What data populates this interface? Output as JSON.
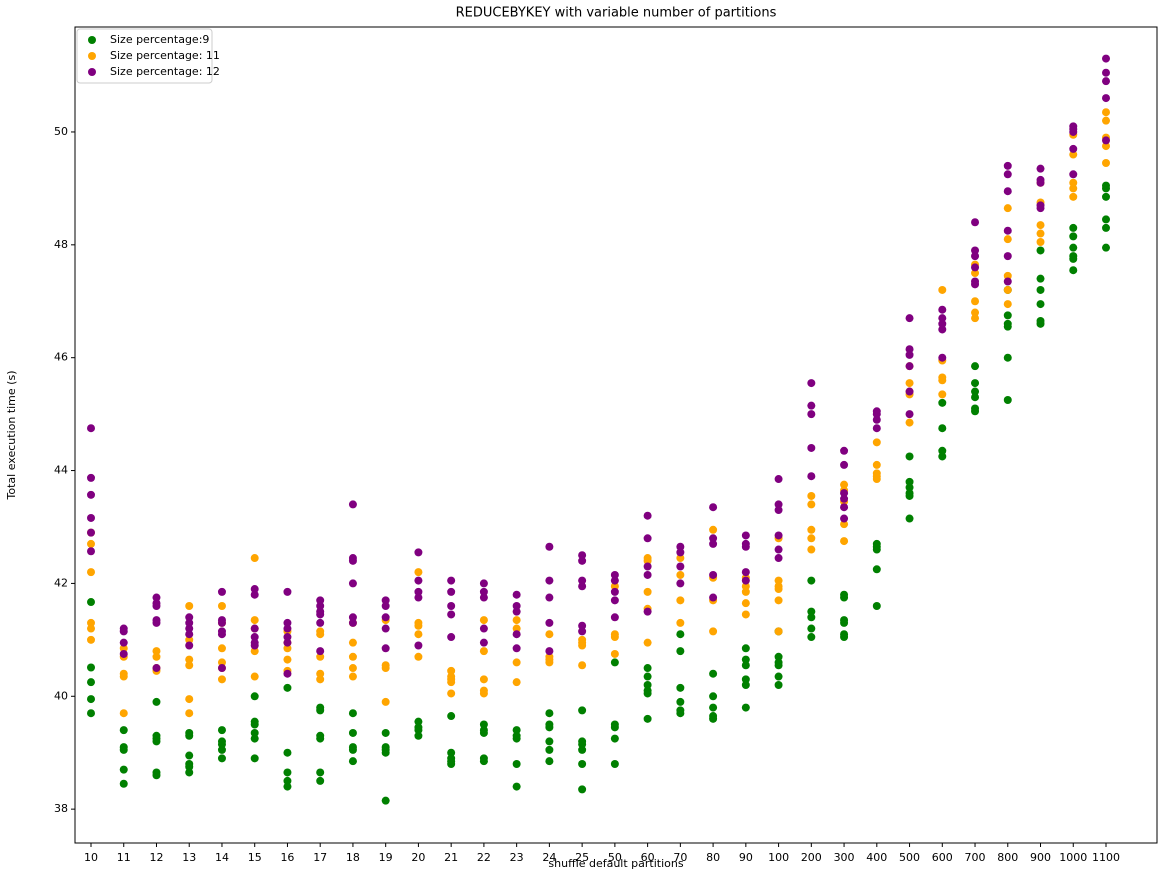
{
  "chart_data": {
    "type": "scatter",
    "title": "REDUCEBYKEY with variable number of partitions",
    "x_label": "shuffle default partitions",
    "y_label": "Total execution time (s)",
    "categories": [
      "10",
      "11",
      "12",
      "13",
      "14",
      "15",
      "16",
      "17",
      "18",
      "19",
      "20",
      "21",
      "22",
      "23",
      "24",
      "25",
      "50",
      "60",
      "70",
      "80",
      "90",
      "100",
      "200",
      "300",
      "400",
      "500",
      "600",
      "700",
      "800",
      "900",
      "1000",
      "1100"
    ],
    "ylim": [
      37.4,
      51.86
    ],
    "yticks": [
      38,
      40,
      42,
      44,
      46,
      48,
      50
    ],
    "legend": "upper left",
    "series": [
      {
        "name": "Size percentage:9",
        "color": "#008000",
        "values": [
          [
            41.67,
            40.51,
            40.25,
            39.95,
            39.7
          ],
          [
            39.4,
            39.1,
            39.05,
            38.7,
            38.45
          ],
          [
            39.9,
            39.3,
            39.25,
            39.2,
            38.65,
            38.6
          ],
          [
            39.35,
            39.3,
            38.95,
            38.8,
            38.75,
            38.65
          ],
          [
            39.4,
            39.2,
            39.15,
            39.05,
            38.9
          ],
          [
            40.0,
            39.55,
            39.5,
            39.35,
            39.25,
            38.9
          ],
          [
            40.15,
            39.0,
            38.65,
            38.5,
            38.4
          ],
          [
            39.8,
            39.75,
            39.3,
            39.25,
            38.65,
            38.5
          ],
          [
            39.7,
            39.35,
            39.1,
            39.05,
            38.85
          ],
          [
            39.35,
            39.1,
            39.05,
            39.0,
            38.15
          ],
          [
            39.55,
            39.45,
            39.4,
            39.3
          ],
          [
            39.65,
            39.0,
            38.9,
            38.85,
            38.8
          ],
          [
            39.5,
            39.4,
            39.35,
            38.9,
            38.85
          ],
          [
            39.4,
            39.3,
            39.25,
            38.8,
            38.4
          ],
          [
            39.7,
            39.5,
            39.45,
            39.2,
            39.05,
            38.85
          ],
          [
            39.75,
            39.2,
            39.15,
            39.05,
            38.8,
            38.35
          ],
          [
            40.6,
            39.5,
            39.45,
            39.25,
            38.8
          ],
          [
            40.5,
            40.35,
            40.2,
            40.1,
            40.05,
            39.6
          ],
          [
            41.1,
            40.8,
            40.15,
            39.9,
            39.75,
            39.7
          ],
          [
            40.4,
            40.0,
            39.8,
            39.65,
            39.6
          ],
          [
            40.85,
            40.65,
            40.55,
            40.3,
            40.2,
            39.8
          ],
          [
            41.15,
            40.7,
            40.6,
            40.55,
            40.35,
            40.2
          ],
          [
            42.05,
            41.5,
            41.4,
            41.2,
            41.05
          ],
          [
            41.8,
            41.75,
            41.35,
            41.3,
            41.1,
            41.05
          ],
          [
            42.7,
            42.65,
            42.6,
            42.25,
            41.6
          ],
          [
            44.25,
            43.8,
            43.7,
            43.6,
            43.55,
            43.15
          ],
          [
            45.2,
            44.75,
            44.35,
            44.25
          ],
          [
            45.85,
            45.55,
            45.4,
            45.3,
            45.1,
            45.05
          ],
          [
            47.2,
            46.75,
            46.6,
            46.55,
            46.0,
            45.25
          ],
          [
            47.9,
            47.4,
            47.2,
            46.95,
            46.65,
            46.6
          ],
          [
            48.3,
            48.15,
            47.95,
            47.8,
            47.75,
            47.55
          ],
          [
            49.05,
            49.0,
            48.85,
            48.45,
            48.3,
            47.95
          ]
        ]
      },
      {
        "name": "Size percentage: 11",
        "color": "#ffa500",
        "values": [
          [
            42.9,
            42.7,
            42.2,
            41.3,
            41.2,
            41.0
          ],
          [
            40.85,
            40.7,
            40.4,
            40.35,
            39.7
          ],
          [
            40.8,
            40.7,
            40.5,
            40.45
          ],
          [
            41.6,
            41.0,
            40.65,
            40.55,
            39.95,
            39.7
          ],
          [
            41.6,
            41.3,
            40.85,
            40.6,
            40.5,
            40.3
          ],
          [
            42.45,
            41.35,
            41.2,
            40.8,
            40.35
          ],
          [
            41.15,
            40.95,
            40.85,
            40.65,
            40.45
          ],
          [
            41.15,
            41.1,
            40.7,
            40.4,
            40.3
          ],
          [
            41.3,
            40.95,
            40.7,
            40.5,
            40.35
          ],
          [
            41.35,
            40.55,
            40.5,
            39.9
          ],
          [
            42.2,
            41.3,
            41.25,
            41.1,
            40.7
          ],
          [
            40.45,
            40.35,
            40.3,
            40.25,
            40.05
          ],
          [
            41.35,
            40.8,
            40.3,
            40.1,
            40.05
          ],
          [
            41.35,
            41.2,
            40.6,
            40.25
          ],
          [
            41.1,
            40.7,
            40.65,
            40.6
          ],
          [
            41.0,
            40.95,
            40.9,
            40.55
          ],
          [
            41.95,
            41.1,
            41.05,
            40.75
          ],
          [
            42.45,
            42.4,
            41.85,
            41.55,
            40.95
          ],
          [
            42.45,
            42.15,
            41.7,
            41.3
          ],
          [
            42.95,
            42.1,
            41.7,
            41.15
          ],
          [
            42.1,
            41.95,
            41.85,
            41.65,
            41.45
          ],
          [
            42.8,
            42.05,
            41.95,
            41.9,
            41.7,
            41.15
          ],
          [
            43.55,
            43.4,
            42.95,
            42.8,
            42.6
          ],
          [
            43.75,
            43.65,
            43.45,
            43.05,
            42.75
          ],
          [
            44.5,
            44.1,
            43.95,
            43.9,
            43.85
          ],
          [
            45.85,
            45.55,
            45.4,
            45.35,
            44.85
          ],
          [
            47.2,
            45.95,
            45.65,
            45.6,
            45.35
          ],
          [
            47.65,
            47.5,
            47.0,
            46.8,
            46.7
          ],
          [
            48.65,
            48.1,
            47.45,
            47.2,
            46.95
          ],
          [
            49.1,
            48.75,
            48.35,
            48.2,
            48.05
          ],
          [
            49.95,
            49.6,
            49.1,
            49.0,
            48.85
          ],
          [
            50.35,
            50.2,
            49.9,
            49.75,
            49.45
          ]
        ]
      },
      {
        "name": "Size percentage: 12",
        "color": "#800080",
        "values": [
          [
            44.75,
            43.87,
            43.57,
            43.16,
            42.9,
            42.57
          ],
          [
            41.2,
            41.15,
            40.95,
            40.75
          ],
          [
            41.75,
            41.65,
            41.6,
            41.35,
            41.3,
            40.5
          ],
          [
            41.4,
            41.3,
            41.2,
            41.1,
            40.9
          ],
          [
            41.85,
            41.35,
            41.3,
            41.15,
            41.1,
            40.5
          ],
          [
            41.9,
            41.8,
            41.2,
            41.05,
            40.95,
            40.9
          ],
          [
            41.85,
            41.3,
            41.2,
            41.05,
            40.95,
            40.4
          ],
          [
            41.7,
            41.6,
            41.5,
            41.45,
            41.3,
            40.8
          ],
          [
            43.4,
            42.45,
            42.4,
            42.0,
            41.4,
            41.3
          ],
          [
            41.7,
            41.6,
            41.4,
            41.2,
            40.85
          ],
          [
            42.55,
            42.05,
            41.85,
            41.75,
            40.9
          ],
          [
            42.05,
            41.85,
            41.6,
            41.45,
            41.05
          ],
          [
            42.0,
            41.85,
            41.75,
            41.2,
            40.95
          ],
          [
            41.8,
            41.6,
            41.5,
            41.1,
            40.85
          ],
          [
            42.65,
            42.05,
            41.75,
            41.3,
            40.8
          ],
          [
            42.5,
            42.4,
            42.05,
            41.95,
            41.25,
            41.15
          ],
          [
            42.15,
            42.05,
            41.85,
            41.7,
            41.4
          ],
          [
            43.2,
            42.8,
            42.3,
            42.15,
            41.5
          ],
          [
            42.65,
            42.55,
            42.3,
            42.0
          ],
          [
            43.35,
            42.8,
            42.7,
            42.15,
            41.75
          ],
          [
            42.85,
            42.7,
            42.65,
            42.2,
            42.05
          ],
          [
            43.85,
            43.4,
            43.3,
            42.85,
            42.6,
            42.45
          ],
          [
            45.55,
            45.15,
            45.0,
            44.4,
            43.9
          ],
          [
            44.35,
            44.1,
            43.6,
            43.5,
            43.35,
            43.15
          ],
          [
            45.05,
            45.0,
            44.9,
            44.75
          ],
          [
            46.7,
            46.15,
            46.05,
            45.85,
            45.4,
            45.0
          ],
          [
            46.85,
            46.7,
            46.6,
            46.5,
            46.0
          ],
          [
            48.4,
            47.9,
            47.8,
            47.6,
            47.35,
            47.3
          ],
          [
            49.4,
            49.25,
            48.95,
            48.25,
            47.8,
            47.35
          ],
          [
            49.35,
            49.15,
            49.1,
            48.7,
            48.65
          ],
          [
            50.1,
            50.05,
            50.0,
            49.7,
            49.25
          ],
          [
            51.3,
            51.05,
            50.9,
            50.6,
            49.85
          ]
        ]
      }
    ]
  }
}
